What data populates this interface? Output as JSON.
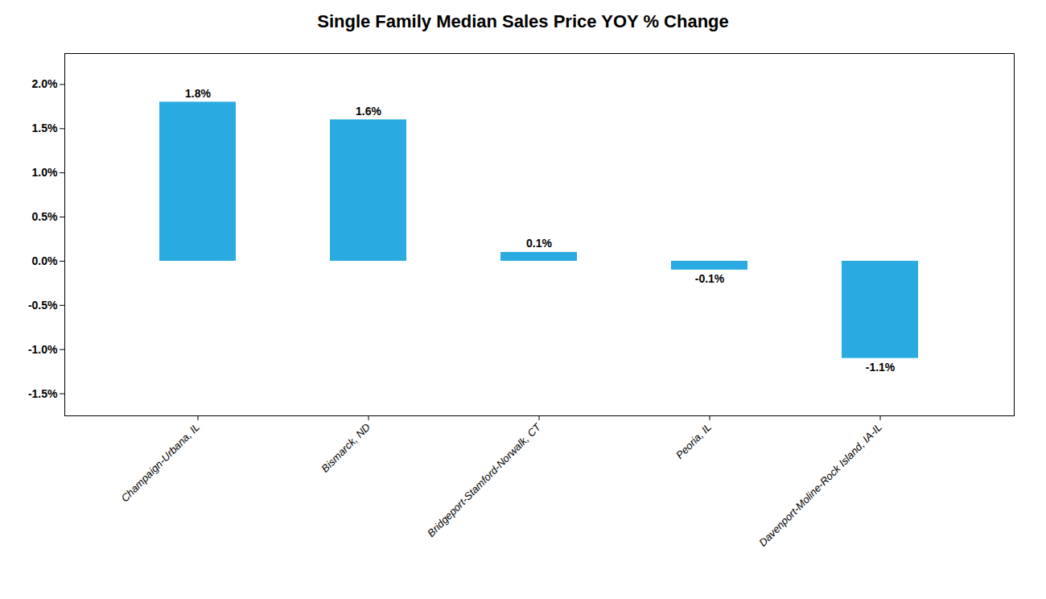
{
  "chart_data": {
    "type": "bar",
    "title": "Single Family Median Sales Price YOY % Change",
    "categories": [
      "Champaign-Urbana, IL",
      "Bismarck, ND",
      "Bridgeport-Stamford-Norwalk, CT",
      "Peoria, IL",
      "Davenport-Moline-Rock Island, IA-IL"
    ],
    "values": [
      1.8,
      1.6,
      0.1,
      -0.1,
      -1.1
    ],
    "value_labels": [
      "1.8%",
      "1.6%",
      "0.1%",
      "-0.1%",
      "-1.1%"
    ],
    "color": "#29ABE2",
    "ylim": [
      -1.75,
      2.35
    ],
    "yticks": [
      {
        "value": -1.5,
        "label": "-1.5%"
      },
      {
        "value": -1.0,
        "label": "-1.0%"
      },
      {
        "value": -0.5,
        "label": "-0.5%"
      },
      {
        "value": 0.0,
        "label": "0.0%"
      },
      {
        "value": 0.5,
        "label": "0.5%"
      },
      {
        "value": 1.0,
        "label": "1.0%"
      },
      {
        "value": 1.5,
        "label": "1.5%"
      },
      {
        "value": 2.0,
        "label": "2.0%"
      }
    ],
    "data_labels": true,
    "grid": false
  }
}
